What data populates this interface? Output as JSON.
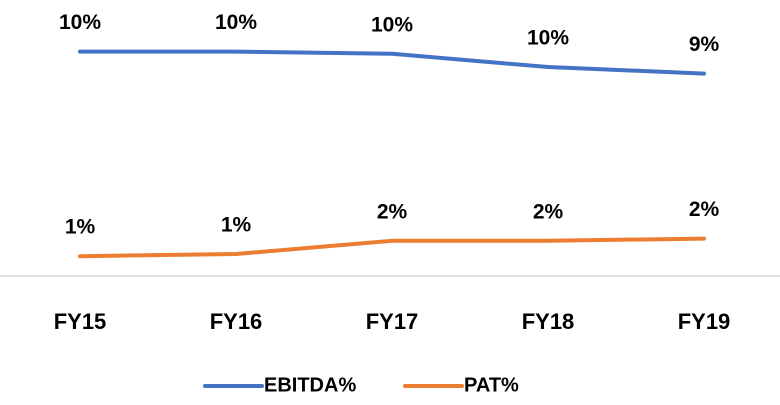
{
  "chart_data": {
    "type": "line",
    "categories": [
      "FY15",
      "FY16",
      "FY17",
      "FY18",
      "FY19"
    ],
    "series": [
      {
        "name": "EBITDA%",
        "color": "#4472c4",
        "values": [
          10.2,
          10.2,
          10.1,
          9.5,
          9.2
        ],
        "value_labels": [
          "10%",
          "10%",
          "10%",
          "10%",
          "9%"
        ]
      },
      {
        "name": "PAT%",
        "color": "#ed7d31",
        "values": [
          0.9,
          1.0,
          1.6,
          1.6,
          1.7
        ],
        "value_labels": [
          "1%",
          "1%",
          "2%",
          "2%",
          "2%"
        ]
      }
    ],
    "ylim": [
      0,
      12.5
    ],
    "legend": "bottom"
  }
}
